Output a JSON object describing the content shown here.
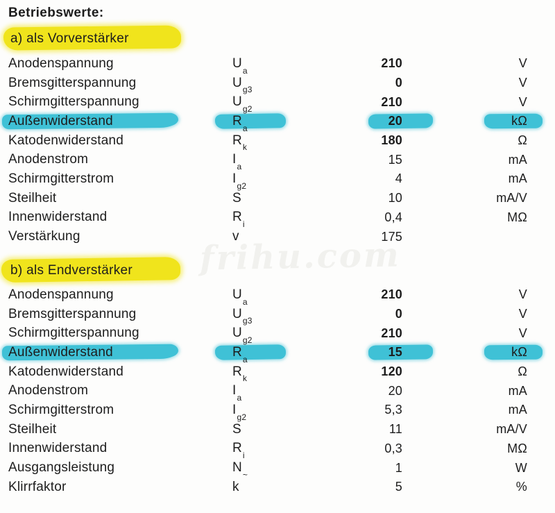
{
  "page": {
    "title": "Betriebswerte:",
    "watermark": "frihu.com"
  },
  "colors": {
    "ink": "#1d1d1d",
    "paper": "#fdfdfc",
    "marker_yellow": "#f0e41c",
    "marker_cyan": "#3fc1d6"
  },
  "sections": [
    {
      "heading": "a) als Vorverstärker",
      "rows": [
        {
          "label": "Anodenspannung",
          "symbol": "U",
          "sub": "a",
          "value": "210",
          "unit": "V",
          "bold": true,
          "marked": false
        },
        {
          "label": "Bremsgitterspannung",
          "symbol": "U",
          "sub": "g3",
          "value": "0",
          "unit": "V",
          "bold": true,
          "marked": false
        },
        {
          "label": "Schirmgitterspannung",
          "symbol": "U",
          "sub": "g2",
          "value": "210",
          "unit": "V",
          "bold": true,
          "marked": false
        },
        {
          "label": "Außenwiderstand",
          "symbol": "R",
          "sub": "a",
          "value": "20",
          "unit": "kΩ",
          "bold": true,
          "marked": true
        },
        {
          "label": "Katodenwiderstand",
          "symbol": "R",
          "sub": "k",
          "value": "180",
          "unit": "Ω",
          "bold": true,
          "marked": false
        },
        {
          "label": "Anodenstrom",
          "symbol": "I",
          "sub": "a",
          "value": "15",
          "unit": "mA",
          "bold": false,
          "marked": false
        },
        {
          "label": "Schirmgitterstrom",
          "symbol": "I",
          "sub": "g2",
          "value": "4",
          "unit": "mA",
          "bold": false,
          "marked": false
        },
        {
          "label": "Steilheit",
          "symbol": "S",
          "sub": "",
          "value": "10",
          "unit": "mA/V",
          "bold": false,
          "marked": false
        },
        {
          "label": "Innenwiderstand",
          "symbol": "R",
          "sub": "i",
          "value": "0,4",
          "unit": "MΩ",
          "bold": false,
          "marked": false
        },
        {
          "label": "Verstärkung",
          "symbol": "v",
          "sub": "",
          "value": "175",
          "unit": "",
          "bold": false,
          "marked": false
        }
      ]
    },
    {
      "heading": "b) als Endverstärker",
      "rows": [
        {
          "label": "Anodenspannung",
          "symbol": "U",
          "sub": "a",
          "value": "210",
          "unit": "V",
          "bold": true,
          "marked": false
        },
        {
          "label": "Bremsgitterspannung",
          "symbol": "U",
          "sub": "g3",
          "value": "0",
          "unit": "V",
          "bold": true,
          "marked": false
        },
        {
          "label": "Schirmgitterspannung",
          "symbol": "U",
          "sub": "g2",
          "value": "210",
          "unit": "V",
          "bold": true,
          "marked": false
        },
        {
          "label": "Außenwiderstand",
          "symbol": "R",
          "sub": "a",
          "value": "15",
          "unit": "kΩ",
          "bold": true,
          "marked": true
        },
        {
          "label": "Katodenwiderstand",
          "symbol": "R",
          "sub": "k",
          "value": "120",
          "unit": "Ω",
          "bold": true,
          "marked": false
        },
        {
          "label": "Anodenstrom",
          "symbol": "I",
          "sub": "a",
          "value": "20",
          "unit": "mA",
          "bold": false,
          "marked": false
        },
        {
          "label": "Schirmgitterstrom",
          "symbol": "I",
          "sub": "g2",
          "value": "5,3",
          "unit": "mA",
          "bold": false,
          "marked": false
        },
        {
          "label": "Steilheit",
          "symbol": "S",
          "sub": "",
          "value": "11",
          "unit": "mA/V",
          "bold": false,
          "marked": false
        },
        {
          "label": "Innenwiderstand",
          "symbol": "R",
          "sub": "i",
          "value": "0,3",
          "unit": "MΩ",
          "bold": false,
          "marked": false
        },
        {
          "label": "Ausgangsleistung",
          "symbol": "N",
          "sub": "~",
          "value": "1",
          "unit": "W",
          "bold": false,
          "marked": false
        },
        {
          "label": "Klirrfaktor",
          "symbol": "k",
          "sub": "",
          "value": "5",
          "unit": "%",
          "bold": false,
          "marked": false
        }
      ]
    }
  ]
}
